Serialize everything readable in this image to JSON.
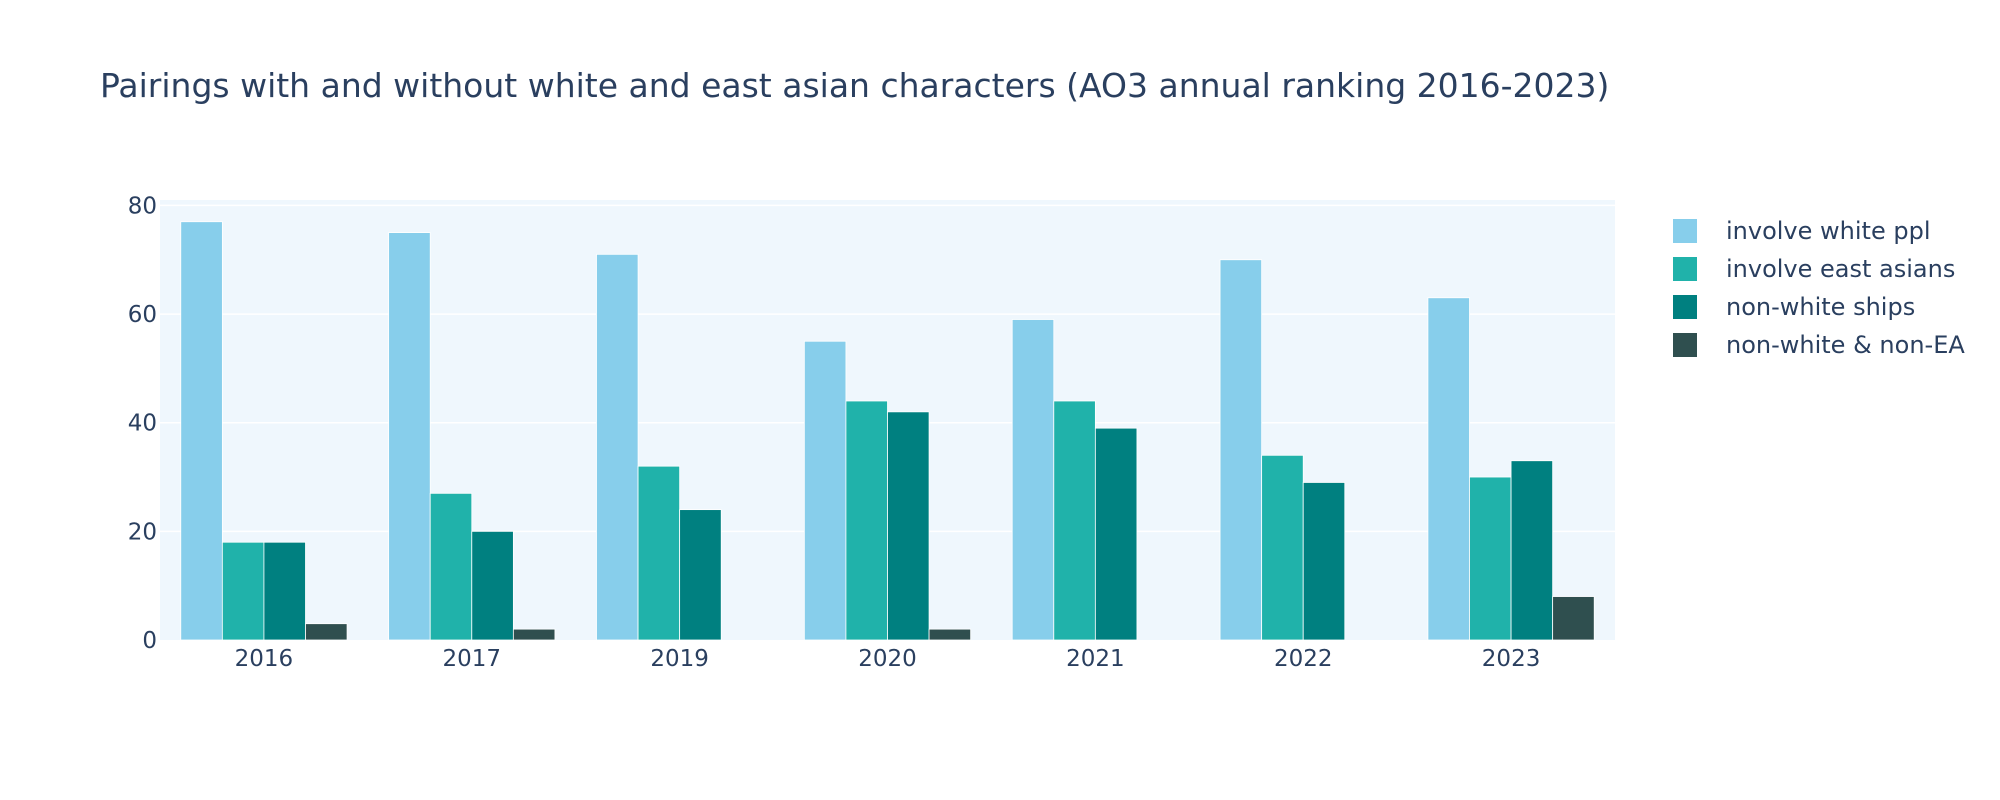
{
  "chart_data": {
    "type": "bar",
    "title": "Pairings with and without white and east asian characters (AO3 annual ranking 2016-2023)",
    "xlabel": "",
    "ylabel": "",
    "categories": [
      "2016",
      "2017",
      "2019",
      "2020",
      "2021",
      "2022",
      "2023"
    ],
    "series": [
      {
        "name": "involve white ppl",
        "color": "#87ceeb",
        "values": [
          77,
          75,
          71,
          55,
          59,
          70,
          63
        ]
      },
      {
        "name": "involve east asians",
        "color": "#20b2aa",
        "values": [
          18,
          27,
          32,
          44,
          44,
          34,
          30
        ]
      },
      {
        "name": "non-white ships",
        "color": "#008080",
        "values": [
          18,
          20,
          24,
          42,
          39,
          29,
          33
        ]
      },
      {
        "name": "non-white & non-EA",
        "color": "#2f4f4f",
        "values": [
          3,
          2,
          0,
          2,
          0,
          0,
          8
        ]
      }
    ],
    "ylim": [
      0,
      81
    ],
    "yticks": [
      0,
      20,
      40,
      60,
      80
    ],
    "grid": true,
    "plot_background": "#eff7fd",
    "legend_position": "right"
  }
}
